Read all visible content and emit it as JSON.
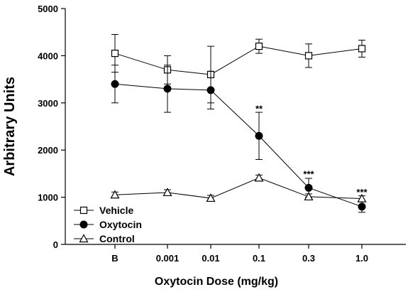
{
  "chart_data": {
    "type": "line",
    "xlabel": "Oxytocin Dose (mg/kg)",
    "ylabel": "Arbitrary Units",
    "categories": [
      "B",
      "0.001",
      "0.01",
      "0.1",
      "0.3",
      "1.0"
    ],
    "ylim": [
      0,
      5000
    ],
    "yticks": [
      0,
      1000,
      2000,
      3000,
      4000,
      5000
    ],
    "grid": false,
    "legend_position": "bottom-left",
    "series": [
      {
        "name": "Vehicle",
        "marker": "open-square",
        "values": [
          4050,
          3700,
          3600,
          4200,
          4000,
          4150
        ],
        "errors": [
          400,
          300,
          600,
          150,
          250,
          180
        ]
      },
      {
        "name": "Oxytocin",
        "marker": "filled-circle",
        "values": [
          3400,
          3300,
          3270,
          2300,
          1200,
          800
        ],
        "errors": [
          400,
          500,
          400,
          500,
          200,
          120
        ]
      },
      {
        "name": "Control",
        "marker": "open-triangle",
        "values": [
          1050,
          1100,
          980,
          1410,
          1010,
          970
        ],
        "errors": [
          60,
          60,
          60,
          60,
          60,
          60
        ]
      }
    ],
    "annotations": [
      {
        "category": "0.1",
        "text": "**",
        "y": 2870
      },
      {
        "category": "0.3",
        "text": "***",
        "y": 1480
      },
      {
        "category": "1.0",
        "text": "***",
        "y": 1100
      }
    ]
  }
}
